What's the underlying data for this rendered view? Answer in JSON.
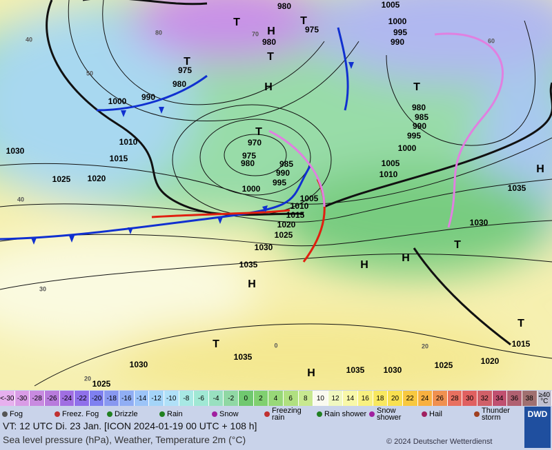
{
  "map": {
    "pressure_labels": [
      "980",
      "1005",
      "975",
      "1000",
      "995",
      "990",
      "980",
      "975",
      "980",
      "990",
      "1000",
      "1010",
      "1015",
      "1030",
      "1025",
      "1020",
      "970",
      "975",
      "980",
      "985",
      "990",
      "995",
      "1000",
      "1005",
      "1010",
      "1015",
      "1020",
      "1025",
      "1030",
      "1035",
      "980",
      "985",
      "990",
      "995",
      "1000",
      "1005",
      "1010",
      "1030",
      "1035",
      "1015",
      "1020",
      "1025",
      "1030",
      "1035",
      "1035",
      "1030",
      "1025"
    ],
    "centers": [
      "H",
      "H",
      "H",
      "H",
      "H",
      "H",
      "H",
      "T",
      "T",
      "T",
      "T",
      "T",
      "T",
      "T",
      "T",
      "T"
    ],
    "isotherm_labels": [
      "40",
      "50",
      "40",
      "30",
      "20",
      "0",
      "20",
      "60",
      "70",
      "80"
    ]
  },
  "scale": {
    "items": [
      {
        "label": "<-30",
        "color": "#e6b0ee"
      },
      {
        "label": "-30",
        "color": "#d99ce6"
      },
      {
        "label": "-28",
        "color": "#c88ae0"
      },
      {
        "label": "-26",
        "color": "#b87bdc"
      },
      {
        "label": "-24",
        "color": "#a06ee2"
      },
      {
        "label": "-22",
        "color": "#8f70ea"
      },
      {
        "label": "-20",
        "color": "#7f80f0"
      },
      {
        "label": "-18",
        "color": "#8898f0"
      },
      {
        "label": "-16",
        "color": "#90aef4"
      },
      {
        "label": "-14",
        "color": "#9cc4f8"
      },
      {
        "label": "-12",
        "color": "#a4d4f8"
      },
      {
        "label": "-10",
        "color": "#b0e0f8"
      },
      {
        "label": "-8",
        "color": "#a8e8e4"
      },
      {
        "label": "-6",
        "color": "#a0e8d4"
      },
      {
        "label": "-4",
        "color": "#98e0c0"
      },
      {
        "label": "-2",
        "color": "#90d8a4"
      },
      {
        "label": "0",
        "color": "#70c870"
      },
      {
        "label": "2",
        "color": "#80d070"
      },
      {
        "label": "4",
        "color": "#98d878"
      },
      {
        "label": "6",
        "color": "#b0e080"
      },
      {
        "label": "8",
        "color": "#c8e890"
      },
      {
        "label": "10",
        "color": "#fafaf0"
      },
      {
        "label": "12",
        "color": "#f0f8c0"
      },
      {
        "label": "14",
        "color": "#f8f8a8"
      },
      {
        "label": "16",
        "color": "#f8f080"
      },
      {
        "label": "18",
        "color": "#f8e860"
      },
      {
        "label": "20",
        "color": "#f8e050"
      },
      {
        "label": "22",
        "color": "#f8c840"
      },
      {
        "label": "24",
        "color": "#f8b040"
      },
      {
        "label": "26",
        "color": "#f09050"
      },
      {
        "label": "28",
        "color": "#e87060"
      },
      {
        "label": "30",
        "color": "#e06060"
      },
      {
        "label": "32",
        "color": "#d06068"
      },
      {
        "label": "34",
        "color": "#c05070"
      },
      {
        "label": "36",
        "color": "#b06070"
      },
      {
        "label": "38",
        "color": "#a07070"
      },
      {
        "label": "≥40 °C",
        "color": "#c0c0d0"
      }
    ]
  },
  "legend": {
    "items": [
      "Fog",
      "Freez. Fog",
      "Drizzle",
      "Rain",
      "Snow",
      "Freezing rain",
      "Rain shower",
      "Snow shower",
      "Hail",
      "Thunder storm"
    ]
  },
  "footer": {
    "valid_time": "VT: 12 UTC Di.  23 Jan. [ICON 2024-01-19  00 UTC + 108 h]",
    "description": "Sea level pressure (hPa), Weather, Temperature 2m (°C)",
    "copyright": "© 2024 Deutscher Wetterdienst",
    "logo": "DWD"
  }
}
